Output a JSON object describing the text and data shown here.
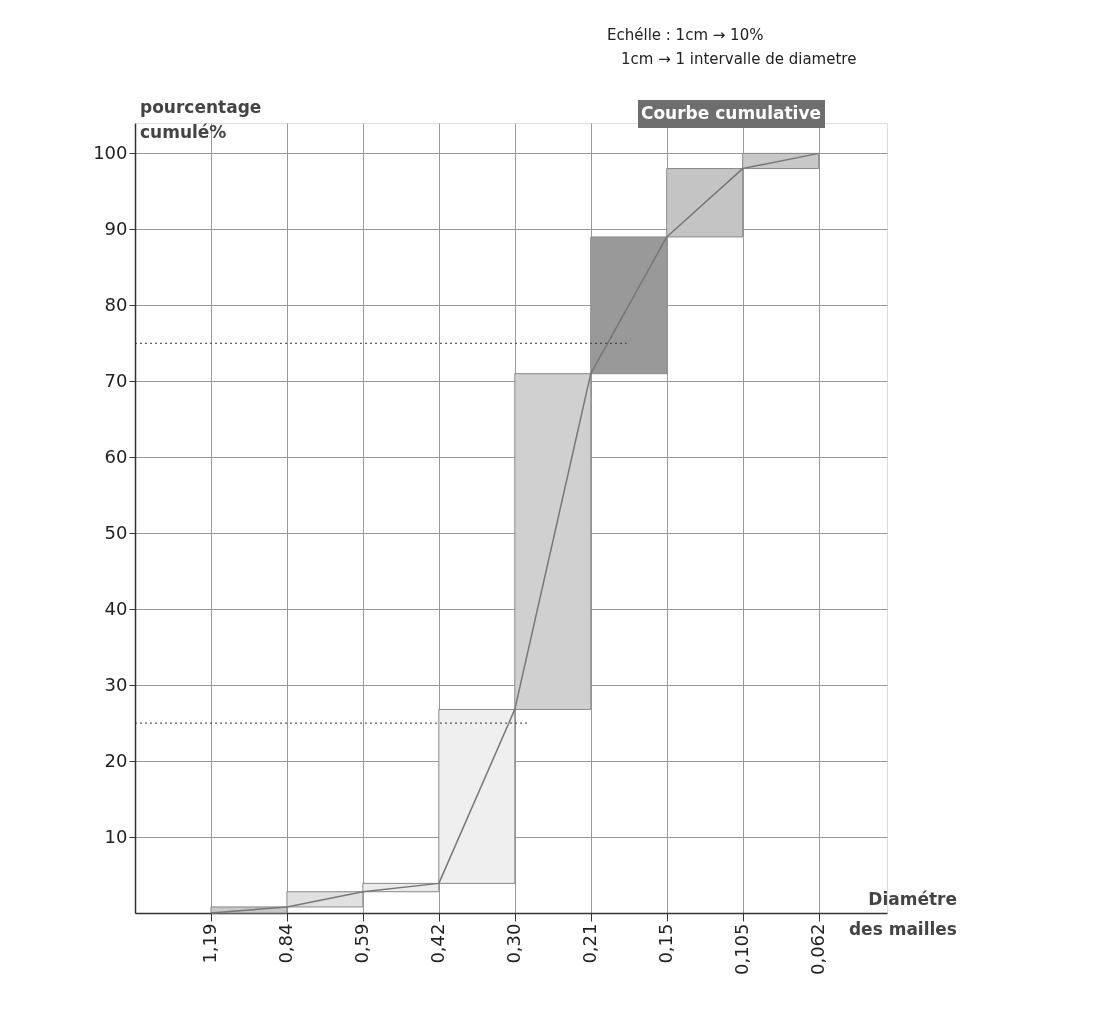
{
  "chart_data": {
    "type": "line",
    "title": "Courbe cumulative",
    "xlabel": "Diamétre des mailles",
    "ylabel": "pourcentage cumulé%",
    "annotations": [
      "Echélle : 1cm → 10%",
      "1cm → 1 intervalle de diametre"
    ],
    "categories": [
      "1,19",
      "0,84",
      "0,59",
      "0,42",
      "0,30",
      "0,21",
      "0,15",
      "0,105",
      "0,062"
    ],
    "series": [
      {
        "type": "bar",
        "base": [
          null,
          0,
          0.8,
          2.8,
          3.9,
          26.8,
          71,
          89,
          98
        ],
        "values": [
          null,
          0.8,
          2.0,
          1.1,
          22.9,
          44.2,
          18,
          9,
          2
        ],
        "colors": [
          null,
          "#c8c8c8",
          "#e0e0e0",
          "#ececec",
          "#efefef",
          "#d0d0d0",
          "#999999",
          "#c4c4c4",
          "#c8c8c8"
        ]
      },
      {
        "color": "#777777",
        "values": [
          0,
          0.8,
          2.8,
          3.9,
          26.8,
          71,
          89,
          98,
          100
        ]
      }
    ],
    "ylim": [
      0,
      104
    ],
    "yticks": [
      10,
      20,
      30,
      40,
      50,
      60,
      70,
      80,
      90,
      {
        "value": 100,
        "label": "100"
      }
    ],
    "ref_lines": [
      {
        "axis": "y",
        "value": 25,
        "line_style": "dotted",
        "color": "#333333"
      },
      {
        "axis": "y",
        "value": 75,
        "line_style": "dotted",
        "color": "#333333"
      }
    ],
    "grid": true,
    "marker": "none",
    "line_style": "solid"
  }
}
